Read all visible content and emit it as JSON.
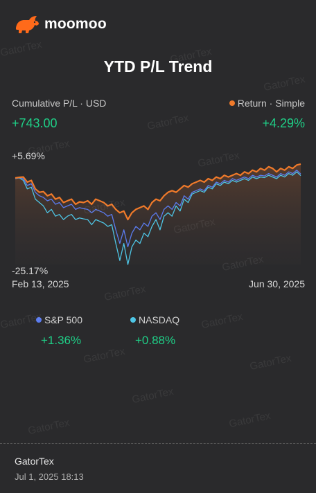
{
  "brand": {
    "name": "moomoo",
    "color": "#ff6a1a"
  },
  "title": "YTD P/L Trend",
  "summary": {
    "left_label": "Cumulative P/L · USD",
    "left_value": "+743.00",
    "right_label": "Return · Simple",
    "right_value": "+4.29%"
  },
  "axis": {
    "y_max_label": "+5.69%",
    "y_min_label": "-25.17%",
    "x_start": "Feb 13, 2025",
    "x_end": "Jun 30, 2025"
  },
  "benchmarks": [
    {
      "name": "S&P 500",
      "value": "+1.36%",
      "color": "#5b7cf0"
    },
    {
      "name": "NASDAQ",
      "value": "+0.88%",
      "color": "#4ec6e6"
    }
  ],
  "footer": {
    "user": "GatorTex",
    "timestamp": "Jul 1, 2025 18:13"
  },
  "watermark_text": "GatorTex",
  "colors": {
    "positive": "#1fcf87",
    "return_line": "#f07a2a",
    "background": "#2a2a2c"
  },
  "chart_data": {
    "type": "line",
    "ylim": [
      -25.17,
      5.69
    ],
    "xlabel": "",
    "ylabel": "",
    "x_range": [
      "Feb 13, 2025",
      "Jun 30, 2025"
    ],
    "series": [
      {
        "name": "Return",
        "color": "#f07a2a",
        "values": [
          0.2,
          0.4,
          0.5,
          -1.0,
          -0.5,
          -3.0,
          -4.0,
          -3.8,
          -5.0,
          -4.5,
          -6.0,
          -5.5,
          -7.0,
          -6.5,
          -6.0,
          -7.5,
          -6.8,
          -7.0,
          -6.5,
          -7.5,
          -6.0,
          -6.5,
          -7.0,
          -8.0,
          -7.5,
          -9.0,
          -10.0,
          -9.5,
          -12.0,
          -10.0,
          -9.0,
          -8.5,
          -8.0,
          -9.0,
          -7.0,
          -6.0,
          -6.5,
          -5.0,
          -4.0,
          -3.5,
          -4.0,
          -3.0,
          -2.0,
          -2.5,
          -1.5,
          -1.0,
          -0.5,
          -1.0,
          0.0,
          -0.5,
          0.5,
          0.0,
          1.0,
          0.5,
          1.0,
          1.5,
          1.0,
          2.0,
          1.5,
          2.5,
          2.0,
          3.0,
          2.5,
          3.5,
          3.0,
          2.0,
          3.0,
          2.5,
          3.5,
          3.0,
          4.0,
          4.29
        ]
      },
      {
        "name": "S&P 500",
        "color": "#5b7cf0",
        "values": [
          0.0,
          0.3,
          0.0,
          -2.0,
          -1.5,
          -4.0,
          -5.0,
          -5.5,
          -6.5,
          -6.0,
          -7.5,
          -7.0,
          -8.5,
          -8.0,
          -7.5,
          -9.0,
          -8.5,
          -8.8,
          -9.0,
          -10.0,
          -9.0,
          -9.5,
          -10.0,
          -11.0,
          -10.5,
          -15.0,
          -19.0,
          -15.0,
          -20.0,
          -16.0,
          -14.0,
          -15.0,
          -13.0,
          -14.0,
          -11.0,
          -10.0,
          -12.0,
          -9.0,
          -8.0,
          -9.0,
          -7.0,
          -8.0,
          -5.0,
          -6.0,
          -4.0,
          -3.5,
          -3.0,
          -3.5,
          -2.0,
          -2.5,
          -1.0,
          -1.5,
          -0.5,
          -1.0,
          0.0,
          -0.5,
          0.0,
          0.5,
          0.0,
          1.0,
          0.5,
          1.0,
          0.8,
          1.5,
          1.0,
          0.5,
          1.5,
          1.0,
          2.0,
          1.5,
          2.5,
          1.36
        ]
      },
      {
        "name": "NASDAQ",
        "color": "#4ec6e6",
        "values": [
          0.0,
          0.2,
          -0.5,
          -3.0,
          -2.5,
          -6.0,
          -7.0,
          -8.0,
          -10.0,
          -9.0,
          -11.0,
          -10.5,
          -12.0,
          -11.0,
          -10.5,
          -12.0,
          -11.5,
          -11.8,
          -12.0,
          -13.5,
          -12.0,
          -12.5,
          -13.0,
          -14.0,
          -13.5,
          -19.0,
          -24.0,
          -19.0,
          -25.17,
          -20.0,
          -18.0,
          -19.0,
          -16.0,
          -17.0,
          -14.0,
          -12.0,
          -15.0,
          -11.0,
          -10.0,
          -11.0,
          -8.0,
          -9.5,
          -6.0,
          -7.0,
          -4.5,
          -4.0,
          -3.5,
          -4.0,
          -2.5,
          -3.0,
          -1.5,
          -2.0,
          -1.0,
          -1.5,
          -0.5,
          -1.0,
          -0.5,
          0.0,
          -0.5,
          0.5,
          0.0,
          0.5,
          0.3,
          1.0,
          0.5,
          0.0,
          1.0,
          0.5,
          1.5,
          1.0,
          2.0,
          0.88
        ]
      }
    ]
  }
}
